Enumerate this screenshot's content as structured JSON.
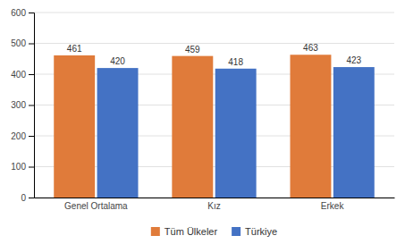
{
  "chart_data": {
    "type": "bar",
    "categories": [
      "Genel Ortalama",
      "Kız",
      "Erkek"
    ],
    "series": [
      {
        "name": "Tüm Ülkeler",
        "color": "#E07B3A",
        "values": [
          461,
          459,
          463
        ]
      },
      {
        "name": "Türkiye",
        "color": "#4472C4",
        "values": [
          420,
          418,
          423
        ]
      }
    ],
    "ylim": [
      0,
      600
    ],
    "yticks": [
      0,
      100,
      200,
      300,
      400,
      500,
      600
    ],
    "grid": true,
    "legend": "bottom",
    "data_labels": true
  }
}
